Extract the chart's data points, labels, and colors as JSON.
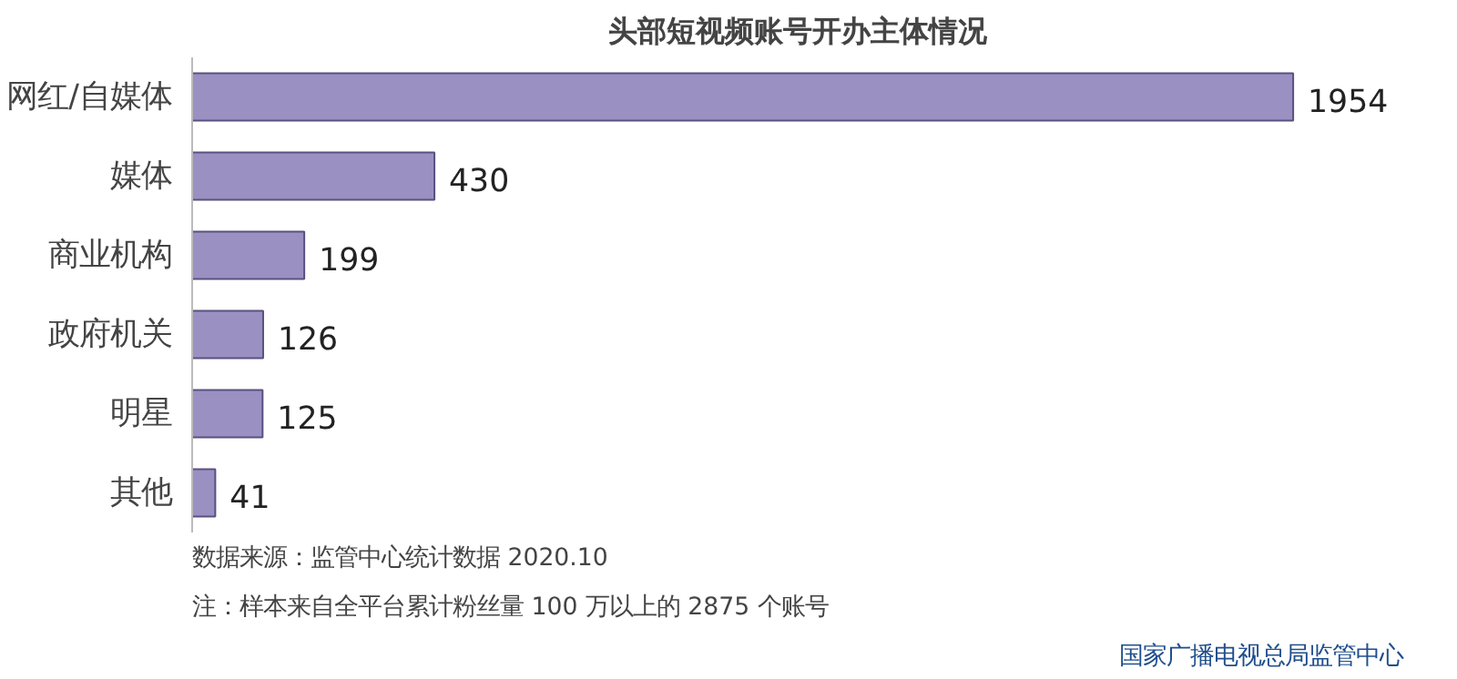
{
  "chart_data": {
    "type": "bar",
    "orientation": "horizontal",
    "title": "头部短视频账号开办主体情况",
    "categories": [
      "网红/自媒体",
      "媒体",
      "商业机构",
      "政府机关",
      "明星",
      "其他"
    ],
    "values": [
      1954,
      430,
      199,
      126,
      125,
      41
    ],
    "color": "#9b90c2",
    "data_labels": true,
    "grid": false,
    "annotations": [
      "数据来源：监管中心统计数据 2020.10",
      "注：样本来自全平台累计粉丝量 100 万以上的 2875 个账号",
      "国家广播电视总局监管中心"
    ]
  }
}
